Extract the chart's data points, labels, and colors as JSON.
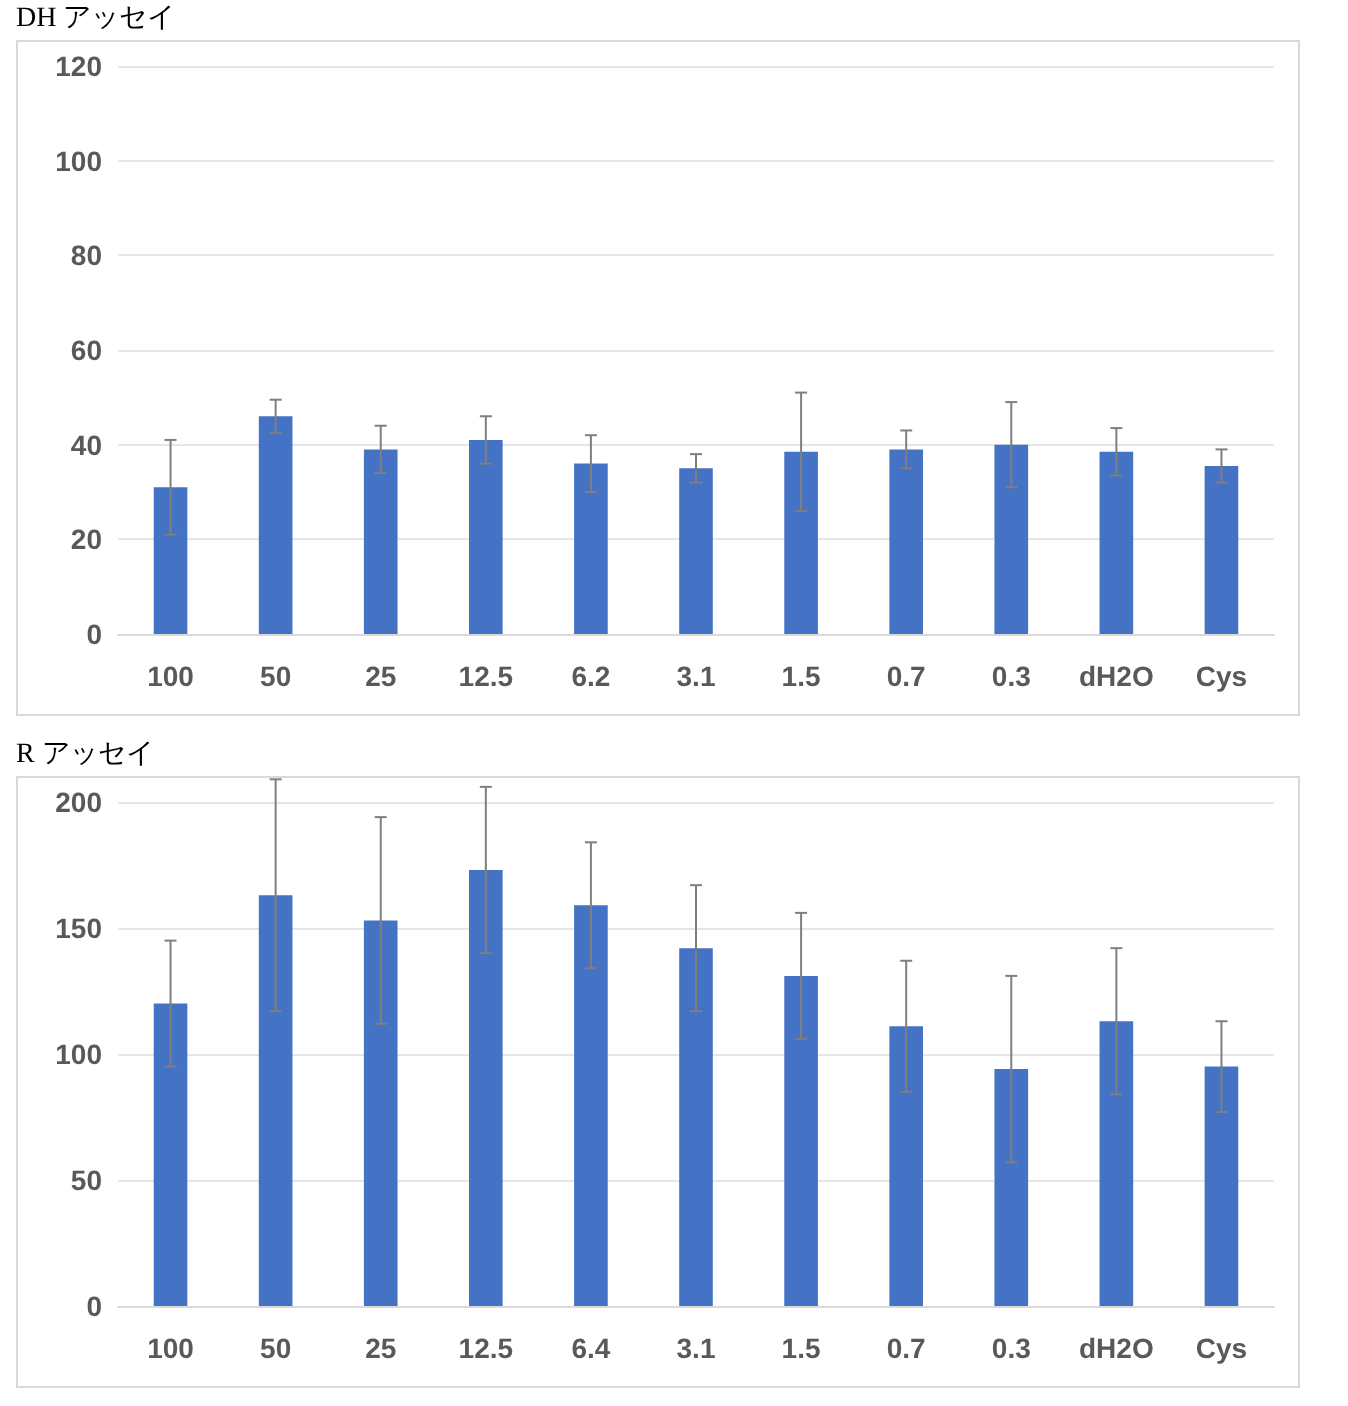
{
  "chart_data": [
    {
      "type": "bar",
      "title": "DH アッセイ",
      "categories": [
        "100",
        "50",
        "25",
        "12.5",
        "6.2",
        "3.1",
        "1.5",
        "0.7",
        "0.3",
        "dH2O",
        "Cys"
      ],
      "color": "#4472c4",
      "values": [
        31,
        46,
        39,
        41,
        36,
        35,
        38.5,
        39,
        40,
        38.5,
        35.5
      ],
      "errors": [
        10,
        3.5,
        5,
        5,
        6,
        3,
        12.5,
        4,
        9,
        5,
        3.5
      ],
      "ylim": [
        0,
        120
      ],
      "yticks": [
        0,
        20,
        40,
        60,
        80,
        100,
        120
      ],
      "grid": "y"
    },
    {
      "type": "bar",
      "title": "R アッセイ",
      "categories": [
        "100",
        "50",
        "25",
        "12.5",
        "6.4",
        "3.1",
        "1.5",
        "0.7",
        "0.3",
        "dH2O",
        "Cys"
      ],
      "color": "#4472c4",
      "values": [
        120,
        163,
        153,
        173,
        159,
        142,
        131,
        111,
        94,
        113,
        95
      ],
      "errors": [
        25,
        46,
        41,
        33,
        25,
        25,
        25,
        26,
        37,
        29,
        18
      ],
      "ylim": [
        0,
        200
      ],
      "yticks": [
        0,
        50,
        100,
        150,
        200
      ],
      "grid": "y"
    }
  ]
}
